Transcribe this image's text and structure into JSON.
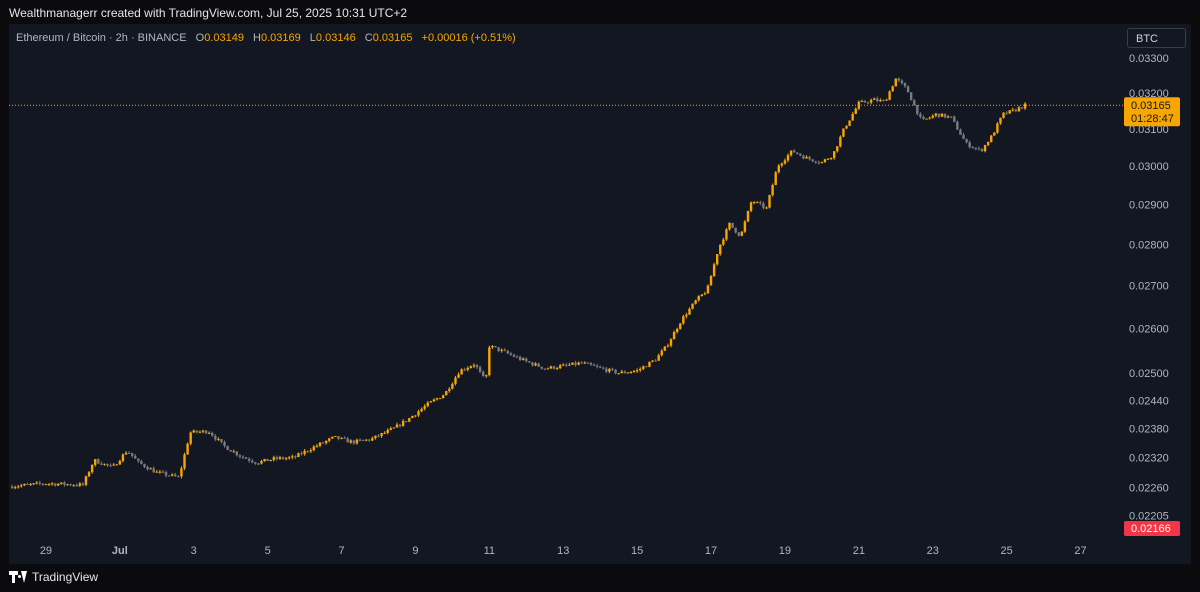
{
  "header": {
    "attribution": "Wealthmanagerr created with TradingView.com, Jul 25, 2025 10:31 UTC+2"
  },
  "legend": {
    "symbol": "Ethereum / Bitcoin · 2h · BINANCE",
    "open_label": "O",
    "open": "0.03149",
    "high_label": "H",
    "high": "0.03169",
    "low_label": "L",
    "low": "0.03146",
    "close_label": "C",
    "close": "0.03165",
    "change": "+0.00016 (+0.51%)"
  },
  "currency": "BTC",
  "last_price": {
    "price": "0.03165",
    "countdown": "01:28:47",
    "value": 0.03165,
    "color": "#f7a600"
  },
  "low_marker": {
    "price": "0.02166",
    "color": "#f23645"
  },
  "footer": {
    "brand": "TradingView"
  },
  "colors": {
    "up": "#f7a600",
    "down": "#787b86",
    "background": "#131722"
  },
  "chart_data": {
    "type": "candlestick",
    "symbol": "ETH/BTC",
    "interval": "2h",
    "y_scale": "log",
    "y_ticks": [
      "0.03300",
      "0.03200",
      "0.03100",
      "0.03000",
      "0.02900",
      "0.02800",
      "0.02700",
      "0.02600",
      "0.02500",
      "0.02440",
      "0.02380",
      "0.02320",
      "0.02260",
      "0.02205"
    ],
    "x_ticks": [
      "29",
      "Jul",
      "3",
      "5",
      "7",
      "9",
      "11",
      "13",
      "15",
      "17",
      "19",
      "21",
      "23",
      "25",
      "27"
    ],
    "x_tick_days": [
      29,
      31,
      33,
      35,
      37,
      39,
      41,
      43,
      45,
      47,
      49,
      51,
      53,
      55,
      57
    ],
    "x_range_days": [
      28,
      57.5
    ],
    "last_day": 55.5,
    "path_days": [
      28,
      29,
      30,
      30.3,
      30.8,
      31.2,
      31.5,
      32,
      32.6,
      32.9,
      33.4,
      33.8,
      34.3,
      34.7,
      35.2,
      35.7,
      36.2,
      36.8,
      37.3,
      37.8,
      38.4,
      38.8,
      39.3,
      39.8,
      40.2,
      40.6,
      40.9,
      41,
      41.3,
      42,
      42.5,
      43,
      43.5,
      44,
      44.5,
      45,
      45.5,
      45.8,
      46.2,
      46.6,
      46.9,
      47.2,
      47.5,
      47.8,
      48.1,
      48.5,
      48.8,
      49.2,
      49.6,
      50,
      50.3,
      50.6,
      51,
      51.4,
      51.7,
      52,
      52.3,
      52.7,
      53.1,
      53.5,
      53.9,
      54.3,
      54.6,
      54.9,
      55.2,
      55.5
    ],
    "path_closes": [
      0.02262,
      0.02268,
      0.02265,
      0.02315,
      0.023,
      0.02335,
      0.0231,
      0.0229,
      0.0228,
      0.02372,
      0.02375,
      0.02345,
      0.02322,
      0.0231,
      0.02318,
      0.0232,
      0.0234,
      0.02362,
      0.02352,
      0.02358,
      0.0238,
      0.024,
      0.0243,
      0.02455,
      0.02505,
      0.0252,
      0.0248,
      0.0256,
      0.0255,
      0.02525,
      0.0251,
      0.02515,
      0.02522,
      0.0251,
      0.025,
      0.02505,
      0.0253,
      0.0256,
      0.0262,
      0.02665,
      0.0269,
      0.0279,
      0.0285,
      0.0282,
      0.0291,
      0.0289,
      0.03,
      0.0304,
      0.0302,
      0.0301,
      0.0303,
      0.031,
      0.0317,
      0.0318,
      0.03175,
      0.0324,
      0.0321,
      0.0312,
      0.0314,
      0.0313,
      0.0306,
      0.0304,
      0.0308,
      0.0314,
      0.0315,
      0.03165
    ],
    "candles_per_day": 12
  }
}
